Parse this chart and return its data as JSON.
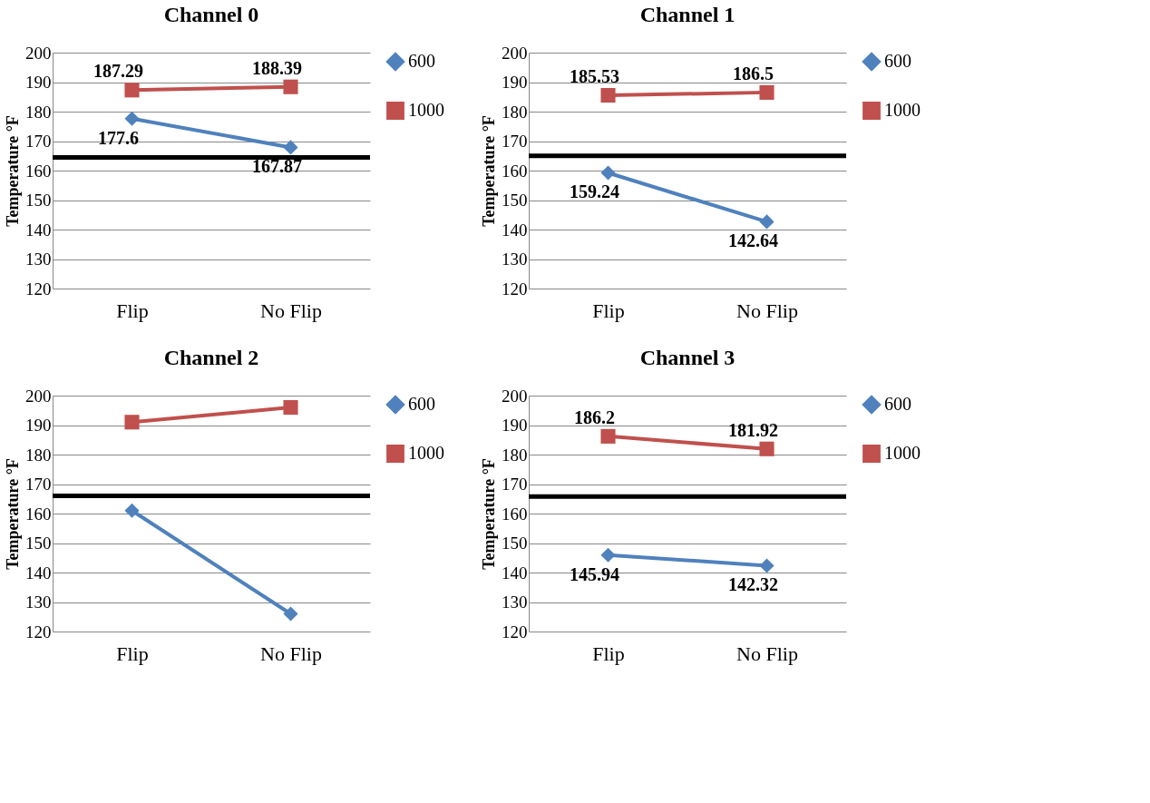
{
  "chart_data": [
    {
      "type": "line",
      "title": "Channel 0",
      "ylabel": "Temperature °F",
      "categories": [
        "Flip",
        "No Flip"
      ],
      "ylim": [
        120,
        200
      ],
      "yticks": [
        120,
        130,
        140,
        150,
        160,
        170,
        180,
        190,
        200
      ],
      "grid": "y",
      "legend": "right",
      "line_style": "solid",
      "series": [
        {
          "name": "600",
          "color": "#4f81bd",
          "marker": "diamond",
          "values": [
            177.6,
            167.87
          ],
          "value_labels": [
            "177.6",
            "167.87"
          ]
        },
        {
          "name": "1000",
          "color": "#c0504d",
          "marker": "square",
          "values": [
            187.29,
            188.39
          ],
          "value_labels": [
            "187.29",
            "188.39"
          ]
        }
      ],
      "ref_lines": [
        {
          "axis": "y",
          "value": 164.5,
          "color": "#000000"
        }
      ]
    },
    {
      "type": "line",
      "title": "Channel 1",
      "ylabel": "Temperature °F",
      "categories": [
        "Flip",
        "No Flip"
      ],
      "ylim": [
        120,
        200
      ],
      "yticks": [
        120,
        130,
        140,
        150,
        160,
        170,
        180,
        190,
        200
      ],
      "grid": "y",
      "legend": "right",
      "line_style": "solid",
      "series": [
        {
          "name": "600",
          "color": "#4f81bd",
          "marker": "diamond",
          "values": [
            159.24,
            142.64
          ],
          "value_labels": [
            "159.24",
            "142.64"
          ]
        },
        {
          "name": "1000",
          "color": "#c0504d",
          "marker": "square",
          "values": [
            185.53,
            186.5
          ],
          "value_labels": [
            "185.53",
            "186.5"
          ]
        }
      ],
      "ref_lines": [
        {
          "axis": "y",
          "value": 165,
          "color": "#000000"
        }
      ]
    },
    {
      "type": "line",
      "title": "Channel 2",
      "ylabel": "Temperature °F",
      "categories": [
        "Flip",
        "No Flip"
      ],
      "ylim": [
        120,
        200
      ],
      "yticks": [
        120,
        130,
        140,
        150,
        160,
        170,
        180,
        190,
        200
      ],
      "grid": "y",
      "legend": "right",
      "line_style": "solid",
      "series": [
        {
          "name": "600",
          "color": "#4f81bd",
          "marker": "diamond",
          "values": [
            161,
            126
          ]
        },
        {
          "name": "1000",
          "color": "#c0504d",
          "marker": "square",
          "values": [
            191,
            196
          ]
        }
      ],
      "ref_lines": [
        {
          "axis": "y",
          "value": 166,
          "color": "#000000"
        }
      ]
    },
    {
      "type": "line",
      "title": "Channel 3",
      "ylabel": "Temperature °F",
      "categories": [
        "Flip",
        "No Flip"
      ],
      "ylim": [
        120,
        200
      ],
      "yticks": [
        120,
        130,
        140,
        150,
        160,
        170,
        180,
        190,
        200
      ],
      "grid": "y",
      "legend": "right",
      "line_style": "solid",
      "series": [
        {
          "name": "600",
          "color": "#4f81bd",
          "marker": "diamond",
          "values": [
            145.94,
            142.32
          ],
          "value_labels": [
            "145.94",
            "142.32"
          ]
        },
        {
          "name": "1000",
          "color": "#c0504d",
          "marker": "square",
          "values": [
            186.2,
            181.92
          ],
          "value_labels": [
            "186.2",
            "181.92"
          ]
        }
      ],
      "ref_lines": [
        {
          "axis": "y",
          "value": 165.8,
          "color": "#000000"
        }
      ]
    }
  ]
}
